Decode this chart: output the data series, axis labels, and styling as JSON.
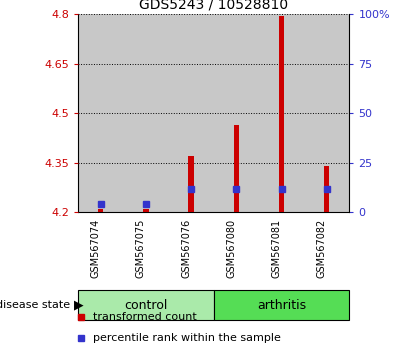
{
  "title": "GDS5243 / 10528810",
  "samples": [
    "GSM567074",
    "GSM567075",
    "GSM567076",
    "GSM567080",
    "GSM567081",
    "GSM567082"
  ],
  "groups": [
    "control",
    "control",
    "control",
    "arthritis",
    "arthritis",
    "arthritis"
  ],
  "bar_bottoms": [
    4.2,
    4.2,
    4.2,
    4.2,
    4.2,
    4.2
  ],
  "bar_tops": [
    4.21,
    4.21,
    4.37,
    4.465,
    4.795,
    4.34
  ],
  "percentile_y": [
    4.225,
    4.225,
    4.27,
    4.27,
    4.27,
    4.27
  ],
  "ylim_left": [
    4.2,
    4.8
  ],
  "ylim_right": [
    0,
    100
  ],
  "yticks_left": [
    4.2,
    4.35,
    4.5,
    4.65,
    4.8
  ],
  "yticks_right": [
    0,
    25,
    50,
    75,
    100
  ],
  "red_color": "#CC0000",
  "blue_color": "#3333CC",
  "control_fill": "#AAEAAA",
  "arthritis_fill": "#55DD55",
  "sample_bg_color": "#C8C8C8",
  "bar_width": 0.12,
  "legend_labels": [
    "transformed count",
    "percentile rank within the sample"
  ],
  "disease_state_label": "disease state"
}
